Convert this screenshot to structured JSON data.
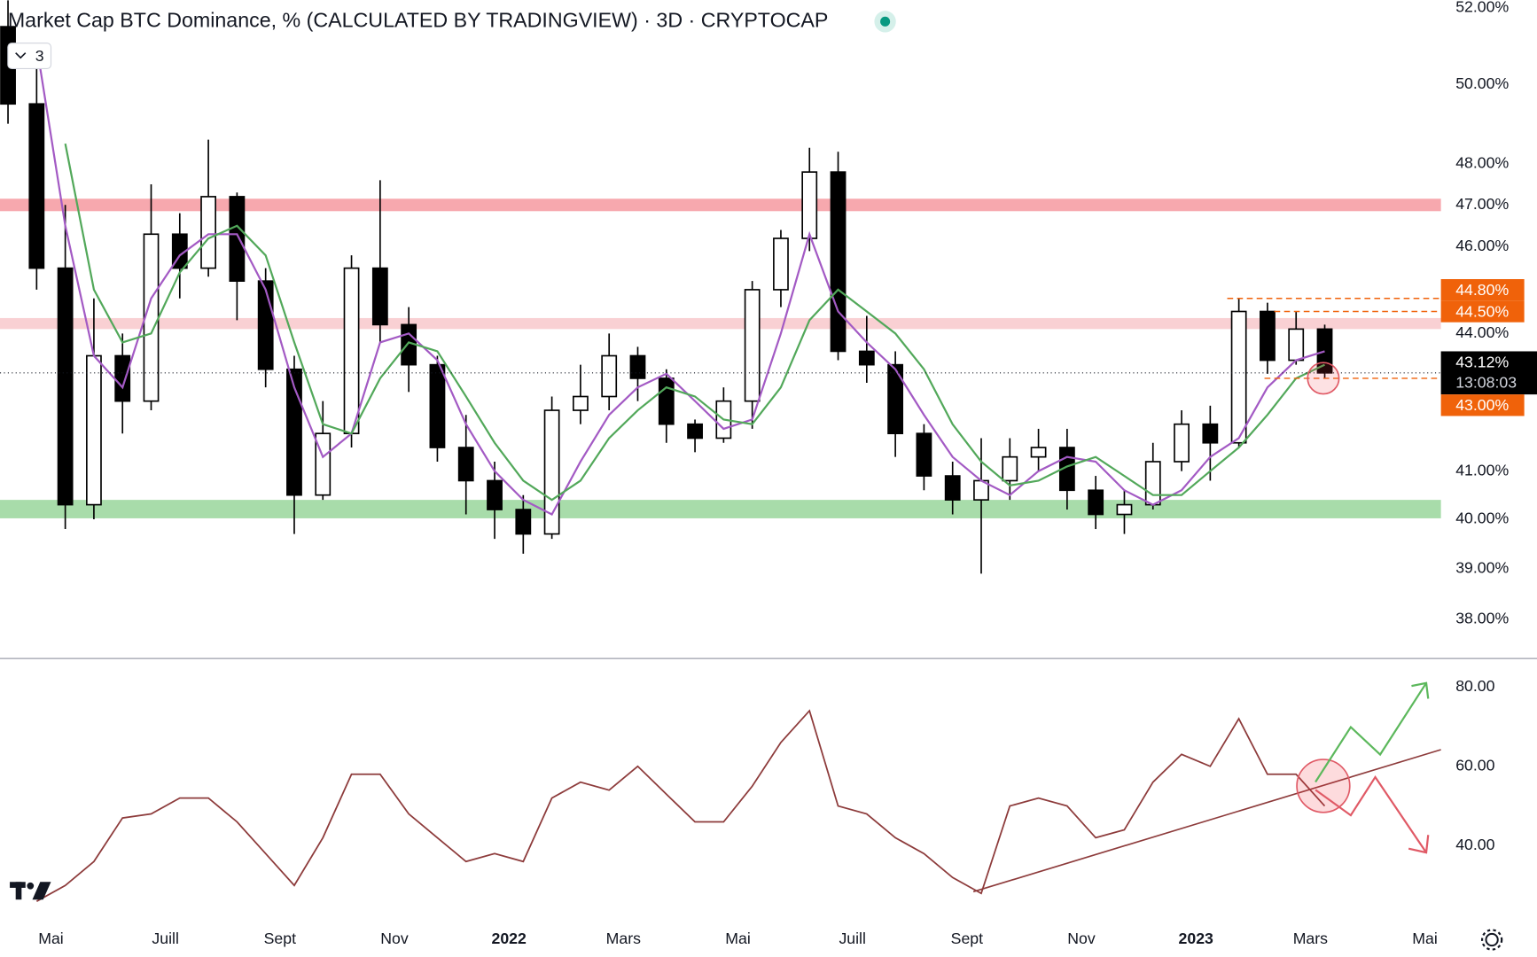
{
  "chart_data": [
    {
      "type": "candlestick",
      "title": "Market Cap BTC Dominance, % (CALCULATED BY TRADINGVIEW) · 3D · CRYPTOCAP",
      "indicator_count": 3,
      "x": [
        -0.75,
        -0.25,
        0.25,
        0.75,
        1.25,
        1.75,
        2.25,
        2.75,
        3.25,
        3.75,
        4.25,
        4.75,
        5.25,
        5.75,
        6.25,
        6.75,
        7.25,
        7.75,
        8.25,
        8.75,
        9.25,
        9.75,
        10.25,
        10.75,
        11.25,
        11.75,
        12.25,
        12.75,
        13.25,
        13.75,
        14.25,
        14.75,
        15.25,
        15.75,
        16.25,
        16.75,
        17.25,
        17.75,
        18.25,
        18.75,
        19.25,
        19.75,
        20.25,
        20.75,
        21.25,
        21.75,
        22.25
      ],
      "open": [
        51.5,
        49.5,
        45.5,
        40.3,
        43.5,
        42.5,
        46.3,
        45.5,
        47.2,
        45.2,
        43.2,
        40.5,
        41.8,
        45.5,
        44.2,
        43.3,
        41.5,
        40.8,
        40.2,
        39.7,
        42.3,
        42.6,
        43.5,
        43,
        42,
        41.7,
        42.5,
        45,
        46.2,
        47.8,
        43.6,
        43.3,
        41.8,
        40.9,
        40.4,
        40.8,
        41.3,
        41.5,
        40.6,
        40.1,
        40.3,
        41.2,
        42,
        41.6,
        44.5,
        43.4,
        44.1
      ],
      "high": [
        52.2,
        50.5,
        47,
        44.8,
        44,
        47.5,
        46.8,
        48.6,
        47.3,
        45.5,
        43.5,
        42.5,
        45.8,
        47.6,
        44.6,
        43.5,
        42.2,
        41.2,
        40.5,
        42.6,
        43.3,
        44,
        43.7,
        43.2,
        42.1,
        42.8,
        45.2,
        46.4,
        48.4,
        48.3,
        44.4,
        43.6,
        42,
        41.2,
        41.7,
        41.7,
        41.9,
        41.9,
        40.9,
        40.6,
        41.6,
        42.3,
        42.4,
        44.8,
        44.7,
        44.5,
        44.2
      ],
      "low": [
        49,
        45,
        39.8,
        40,
        41.8,
        42.3,
        44.8,
        45.3,
        44.3,
        42.8,
        39.7,
        40.4,
        41.5,
        43.8,
        42.7,
        41.2,
        40.1,
        39.6,
        39.3,
        39.6,
        42,
        42.3,
        42.5,
        41.6,
        41.4,
        41.6,
        41.9,
        44.6,
        45.9,
        43.4,
        42.9,
        41.3,
        40.6,
        40.1,
        38.9,
        40.4,
        41,
        40.2,
        39.8,
        39.7,
        40.2,
        41,
        40.8,
        41.5,
        43.1,
        43.3,
        43.0
      ],
      "close": [
        49.5,
        45.5,
        40.3,
        43.5,
        42.5,
        46.3,
        45.5,
        47.2,
        45.2,
        43.2,
        40.5,
        41.8,
        45.5,
        44.2,
        43.3,
        41.5,
        40.8,
        40.2,
        39.7,
        42.3,
        42.6,
        43.5,
        43,
        42,
        41.7,
        42.5,
        45,
        46.2,
        47.8,
        43.6,
        43.3,
        41.8,
        40.9,
        40.4,
        40.8,
        41.3,
        41.5,
        40.6,
        40.1,
        40.3,
        41.2,
        42,
        41.6,
        44.5,
        43.4,
        44.1,
        43.12
      ],
      "overlays": [
        {
          "color": "#a35ac4",
          "values": [
            null,
            51,
            46.5,
            43.5,
            42.8,
            44.8,
            45.8,
            46.3,
            46.3,
            45,
            42.8,
            41.3,
            41.8,
            43.8,
            44,
            43.4,
            42,
            41,
            40.4,
            40.1,
            41.2,
            42.2,
            42.8,
            43.1,
            42.5,
            41.9,
            42.1,
            44,
            46.3,
            44.5,
            43.8,
            43.2,
            42.2,
            41.3,
            40.8,
            40.5,
            41,
            41.3,
            41.2,
            40.6,
            40.3,
            40.6,
            41.3,
            41.7,
            42.8,
            43.4,
            43.6
          ]
        },
        {
          "color": "#52a85a",
          "values": [
            null,
            null,
            48.5,
            45,
            43.8,
            44,
            45.4,
            46.2,
            46.5,
            45.8,
            43.8,
            42,
            41.8,
            43,
            43.8,
            43.6,
            42.6,
            41.6,
            40.8,
            40.4,
            40.8,
            41.7,
            42.3,
            42.8,
            42.6,
            42.1,
            42,
            42.8,
            44.3,
            45,
            44.5,
            44,
            43.2,
            42,
            41.2,
            40.7,
            40.8,
            41.1,
            41.3,
            40.9,
            40.5,
            40.5,
            41,
            41.5,
            42.2,
            43,
            43.3
          ]
        }
      ],
      "up_color": "#ffffff",
      "down_color": "#000000",
      "xlim": [
        -0.89,
        24.28
      ],
      "xticks": [
        {
          "value": 0,
          "label": "Mai"
        },
        {
          "value": 2,
          "label": "Juill"
        },
        {
          "value": 4,
          "label": "Sept"
        },
        {
          "value": 6,
          "label": "Nov"
        },
        {
          "value": 8,
          "label": "2022",
          "bold": true
        },
        {
          "value": 10,
          "label": "Mars"
        },
        {
          "value": 12,
          "label": "Mai"
        },
        {
          "value": 14,
          "label": "Juill"
        },
        {
          "value": 16,
          "label": "Sept"
        },
        {
          "value": 18,
          "label": "Nov"
        },
        {
          "value": 20,
          "label": "2023",
          "bold": true
        },
        {
          "value": 22,
          "label": "Mars"
        },
        {
          "value": 24,
          "label": "Mai"
        }
      ],
      "ylim": [
        37.28,
        52.21
      ],
      "log_scale": true,
      "grid": false,
      "yticks": [
        {
          "value": 52,
          "label": "52.00%"
        },
        {
          "value": 50,
          "label": "50.00%"
        },
        {
          "value": 48,
          "label": "48.00%"
        },
        {
          "value": 47,
          "label": "47.00%"
        },
        {
          "value": 46,
          "label": "46.00%"
        },
        {
          "value": 44,
          "label": "44.00%"
        },
        {
          "value": 41,
          "label": "41.00%"
        },
        {
          "value": 40,
          "label": "40.00%"
        },
        {
          "value": 39,
          "label": "39.00%"
        },
        {
          "value": 38,
          "label": "38.00%"
        }
      ],
      "zones": [
        {
          "low": 46.85,
          "high": 47.15,
          "color": "#f7a8ae"
        },
        {
          "low": 44.1,
          "high": 44.35,
          "color": "#f9d0d3"
        },
        {
          "low": 40.02,
          "high": 40.4,
          "color": "#a8dcaa"
        }
      ],
      "levels": [
        {
          "value": 44.8,
          "label": "44.80%"
        },
        {
          "value": 44.5,
          "label": "44.50%"
        },
        {
          "value": 43.0,
          "label": "43.00%"
        }
      ],
      "level_color": "#f0620a",
      "last_price": {
        "value": 43.12,
        "label": "43.12%",
        "countdown": "13:08:03"
      }
    },
    {
      "type": "line",
      "x": [
        -0.75,
        -0.25,
        0.25,
        0.75,
        1.25,
        1.75,
        2.25,
        2.75,
        3.25,
        3.75,
        4.25,
        4.75,
        5.25,
        5.75,
        6.25,
        6.75,
        7.25,
        7.75,
        8.25,
        8.75,
        9.25,
        9.75,
        10.25,
        10.75,
        11.25,
        11.75,
        12.25,
        12.75,
        13.25,
        13.75,
        14.25,
        14.75,
        15.25,
        15.75,
        16.25,
        16.75,
        17.25,
        17.75,
        18.25,
        18.75,
        19.25,
        19.75,
        20.25,
        20.75,
        21.25,
        21.75,
        22.25
      ],
      "values": [
        null,
        26,
        30,
        36,
        47,
        48,
        52,
        52,
        46,
        38,
        30,
        42,
        58,
        58,
        48,
        42,
        36,
        38,
        36,
        52,
        56,
        54,
        60,
        53,
        46,
        46,
        55,
        66,
        74,
        50,
        48,
        42,
        38,
        32,
        28,
        50,
        52,
        50,
        42,
        44,
        56,
        63,
        60,
        72,
        58,
        58,
        50
      ],
      "color": "#8d3b3b",
      "xlim": [
        -0.89,
        24.28
      ],
      "ylim": [
        21.5,
        86.9
      ],
      "yticks": [
        {
          "value": 80,
          "label": "80.00"
        },
        {
          "value": 60,
          "label": "60.00"
        },
        {
          "value": 40,
          "label": "40.00"
        }
      ]
    }
  ]
}
